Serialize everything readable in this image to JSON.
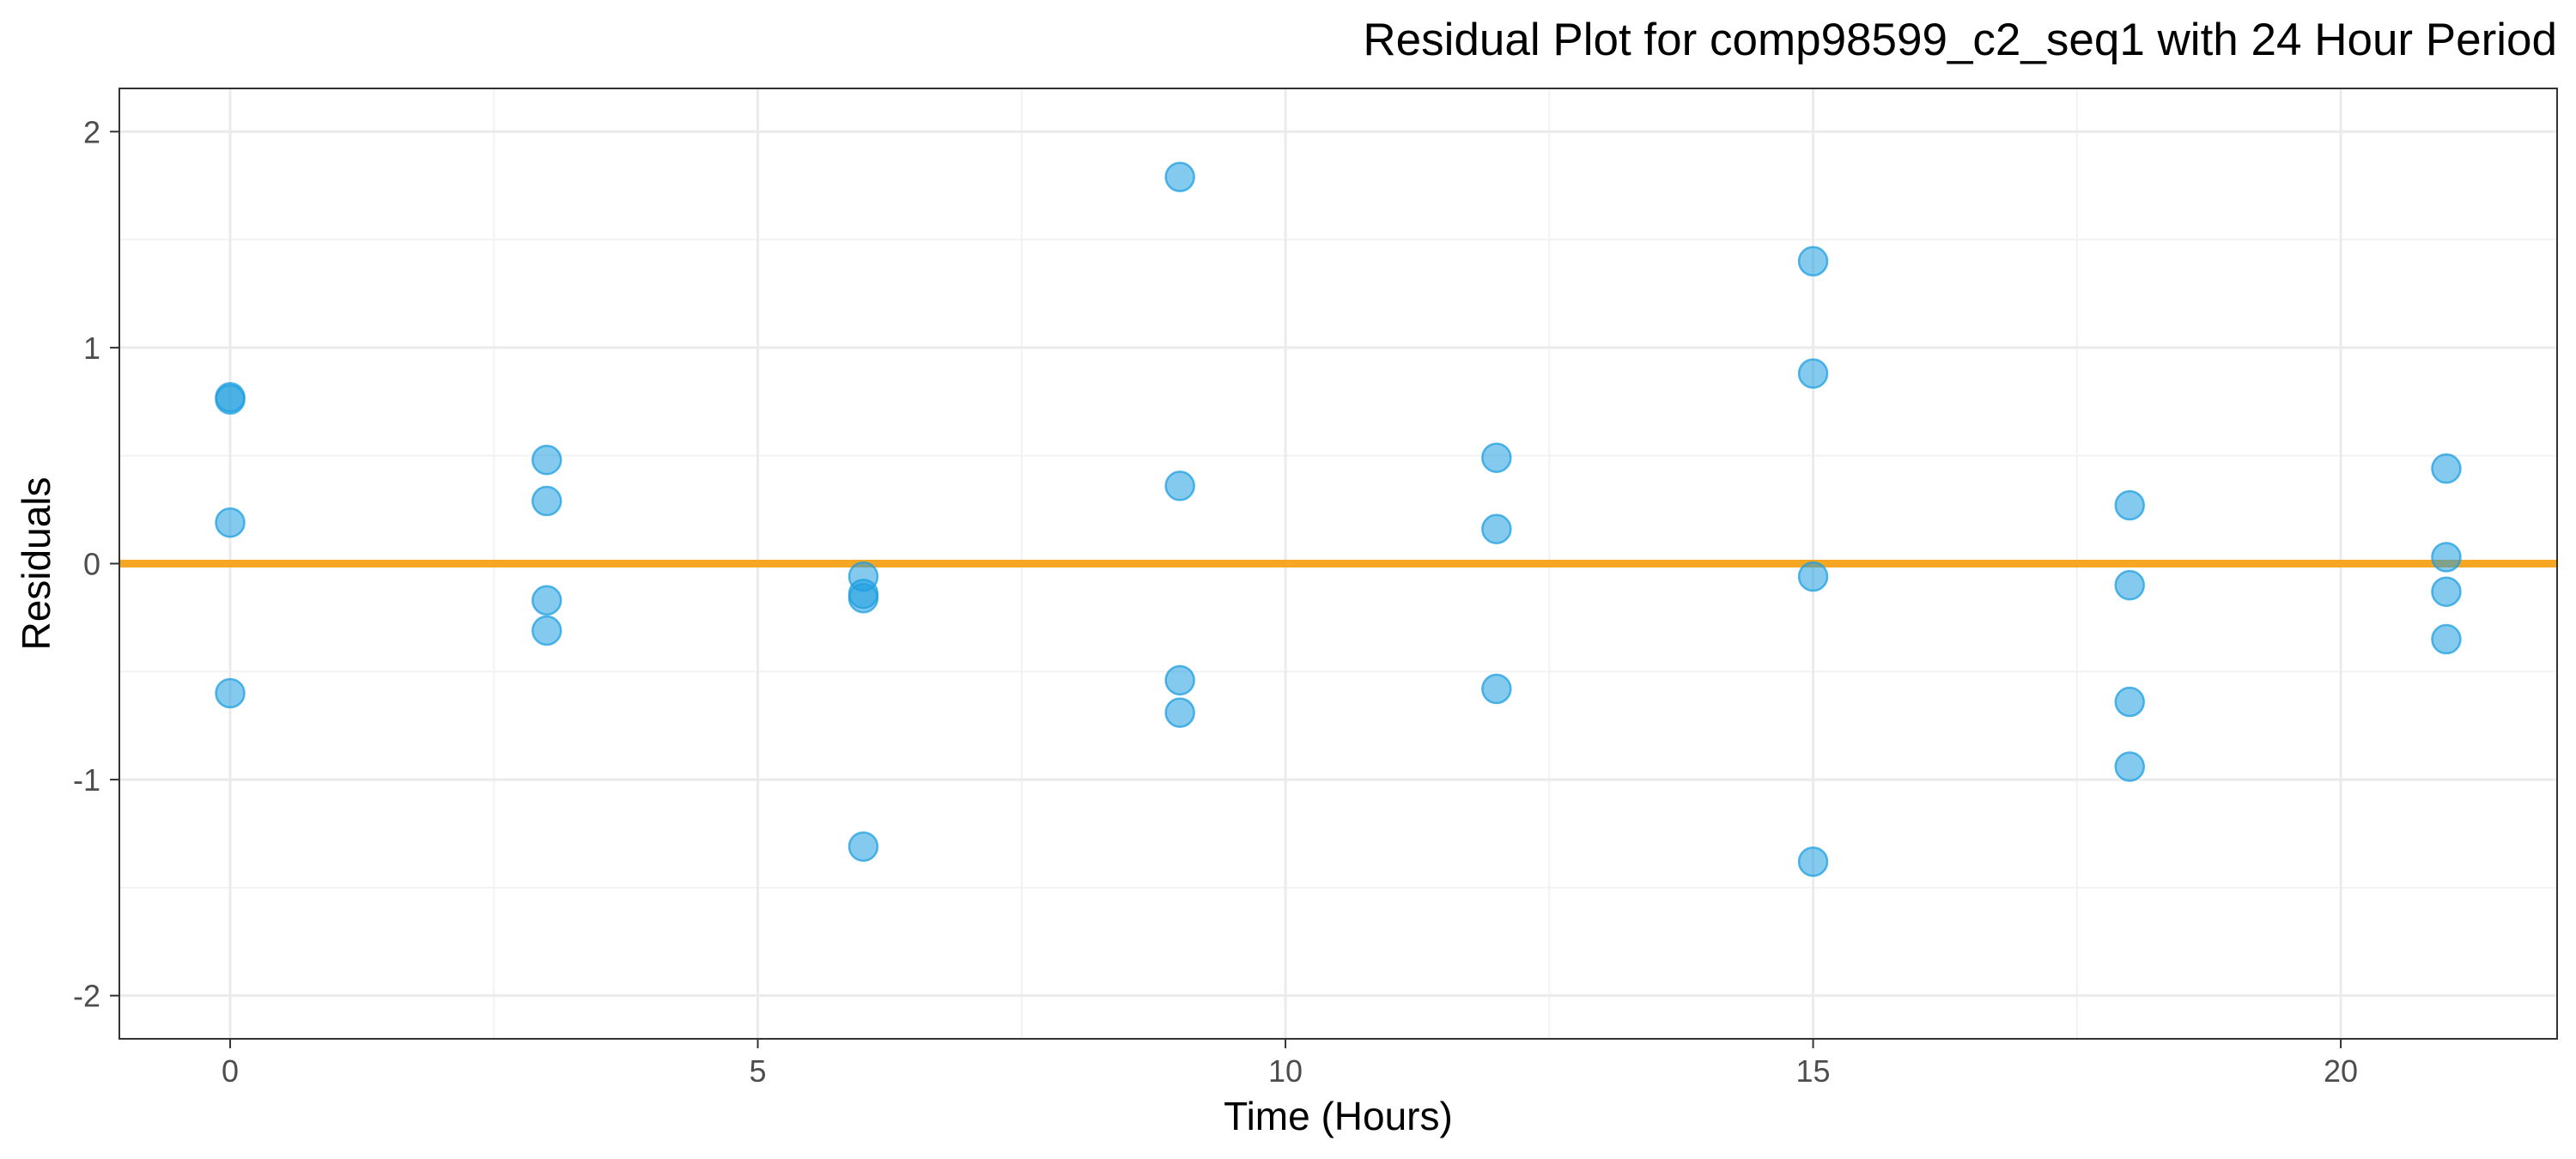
{
  "chart_data": {
    "type": "scatter",
    "title": "Residual Plot for comp98599_c2_seq1 with 24 Hour Period",
    "xlabel": "Time (Hours)",
    "ylabel": "Residuals",
    "xlim": [
      -1.05,
      22.05
    ],
    "ylim": [
      -2.2,
      2.2
    ],
    "x_ticks": [
      0,
      5,
      10,
      15,
      20
    ],
    "y_ticks": [
      2,
      1,
      0,
      -1,
      -2
    ],
    "x_tick_labels": [
      "0",
      "5",
      "10",
      "15",
      "20"
    ],
    "y_tick_labels": [
      "2",
      "1",
      "0",
      "-1",
      "-2"
    ],
    "grid": true,
    "reference_line": {
      "y": 0,
      "color": "#F5A623"
    },
    "point_color": "#1F9FE0",
    "points": [
      {
        "x": 0,
        "y": 0.77
      },
      {
        "x": 0,
        "y": 0.76
      },
      {
        "x": 0,
        "y": 0.19
      },
      {
        "x": 0,
        "y": -0.6
      },
      {
        "x": 3,
        "y": 0.48
      },
      {
        "x": 3,
        "y": 0.29
      },
      {
        "x": 3,
        "y": -0.17
      },
      {
        "x": 3,
        "y": -0.31
      },
      {
        "x": 6,
        "y": -0.06
      },
      {
        "x": 6,
        "y": -0.14
      },
      {
        "x": 6,
        "y": -0.16
      },
      {
        "x": 6,
        "y": -1.31
      },
      {
        "x": 9,
        "y": 1.79
      },
      {
        "x": 9,
        "y": 0.36
      },
      {
        "x": 9,
        "y": -0.54
      },
      {
        "x": 9,
        "y": -0.69
      },
      {
        "x": 12,
        "y": 0.49
      },
      {
        "x": 12,
        "y": 0.16
      },
      {
        "x": 12,
        "y": -0.58
      },
      {
        "x": 15,
        "y": 1.4
      },
      {
        "x": 15,
        "y": 0.88
      },
      {
        "x": 15,
        "y": -0.06
      },
      {
        "x": 15,
        "y": -1.38
      },
      {
        "x": 18,
        "y": 0.27
      },
      {
        "x": 18,
        "y": -0.1
      },
      {
        "x": 18,
        "y": -0.64
      },
      {
        "x": 18,
        "y": -0.94
      },
      {
        "x": 21,
        "y": 0.44
      },
      {
        "x": 21,
        "y": 0.03
      },
      {
        "x": 21,
        "y": -0.13
      },
      {
        "x": 21,
        "y": -0.35
      }
    ]
  }
}
